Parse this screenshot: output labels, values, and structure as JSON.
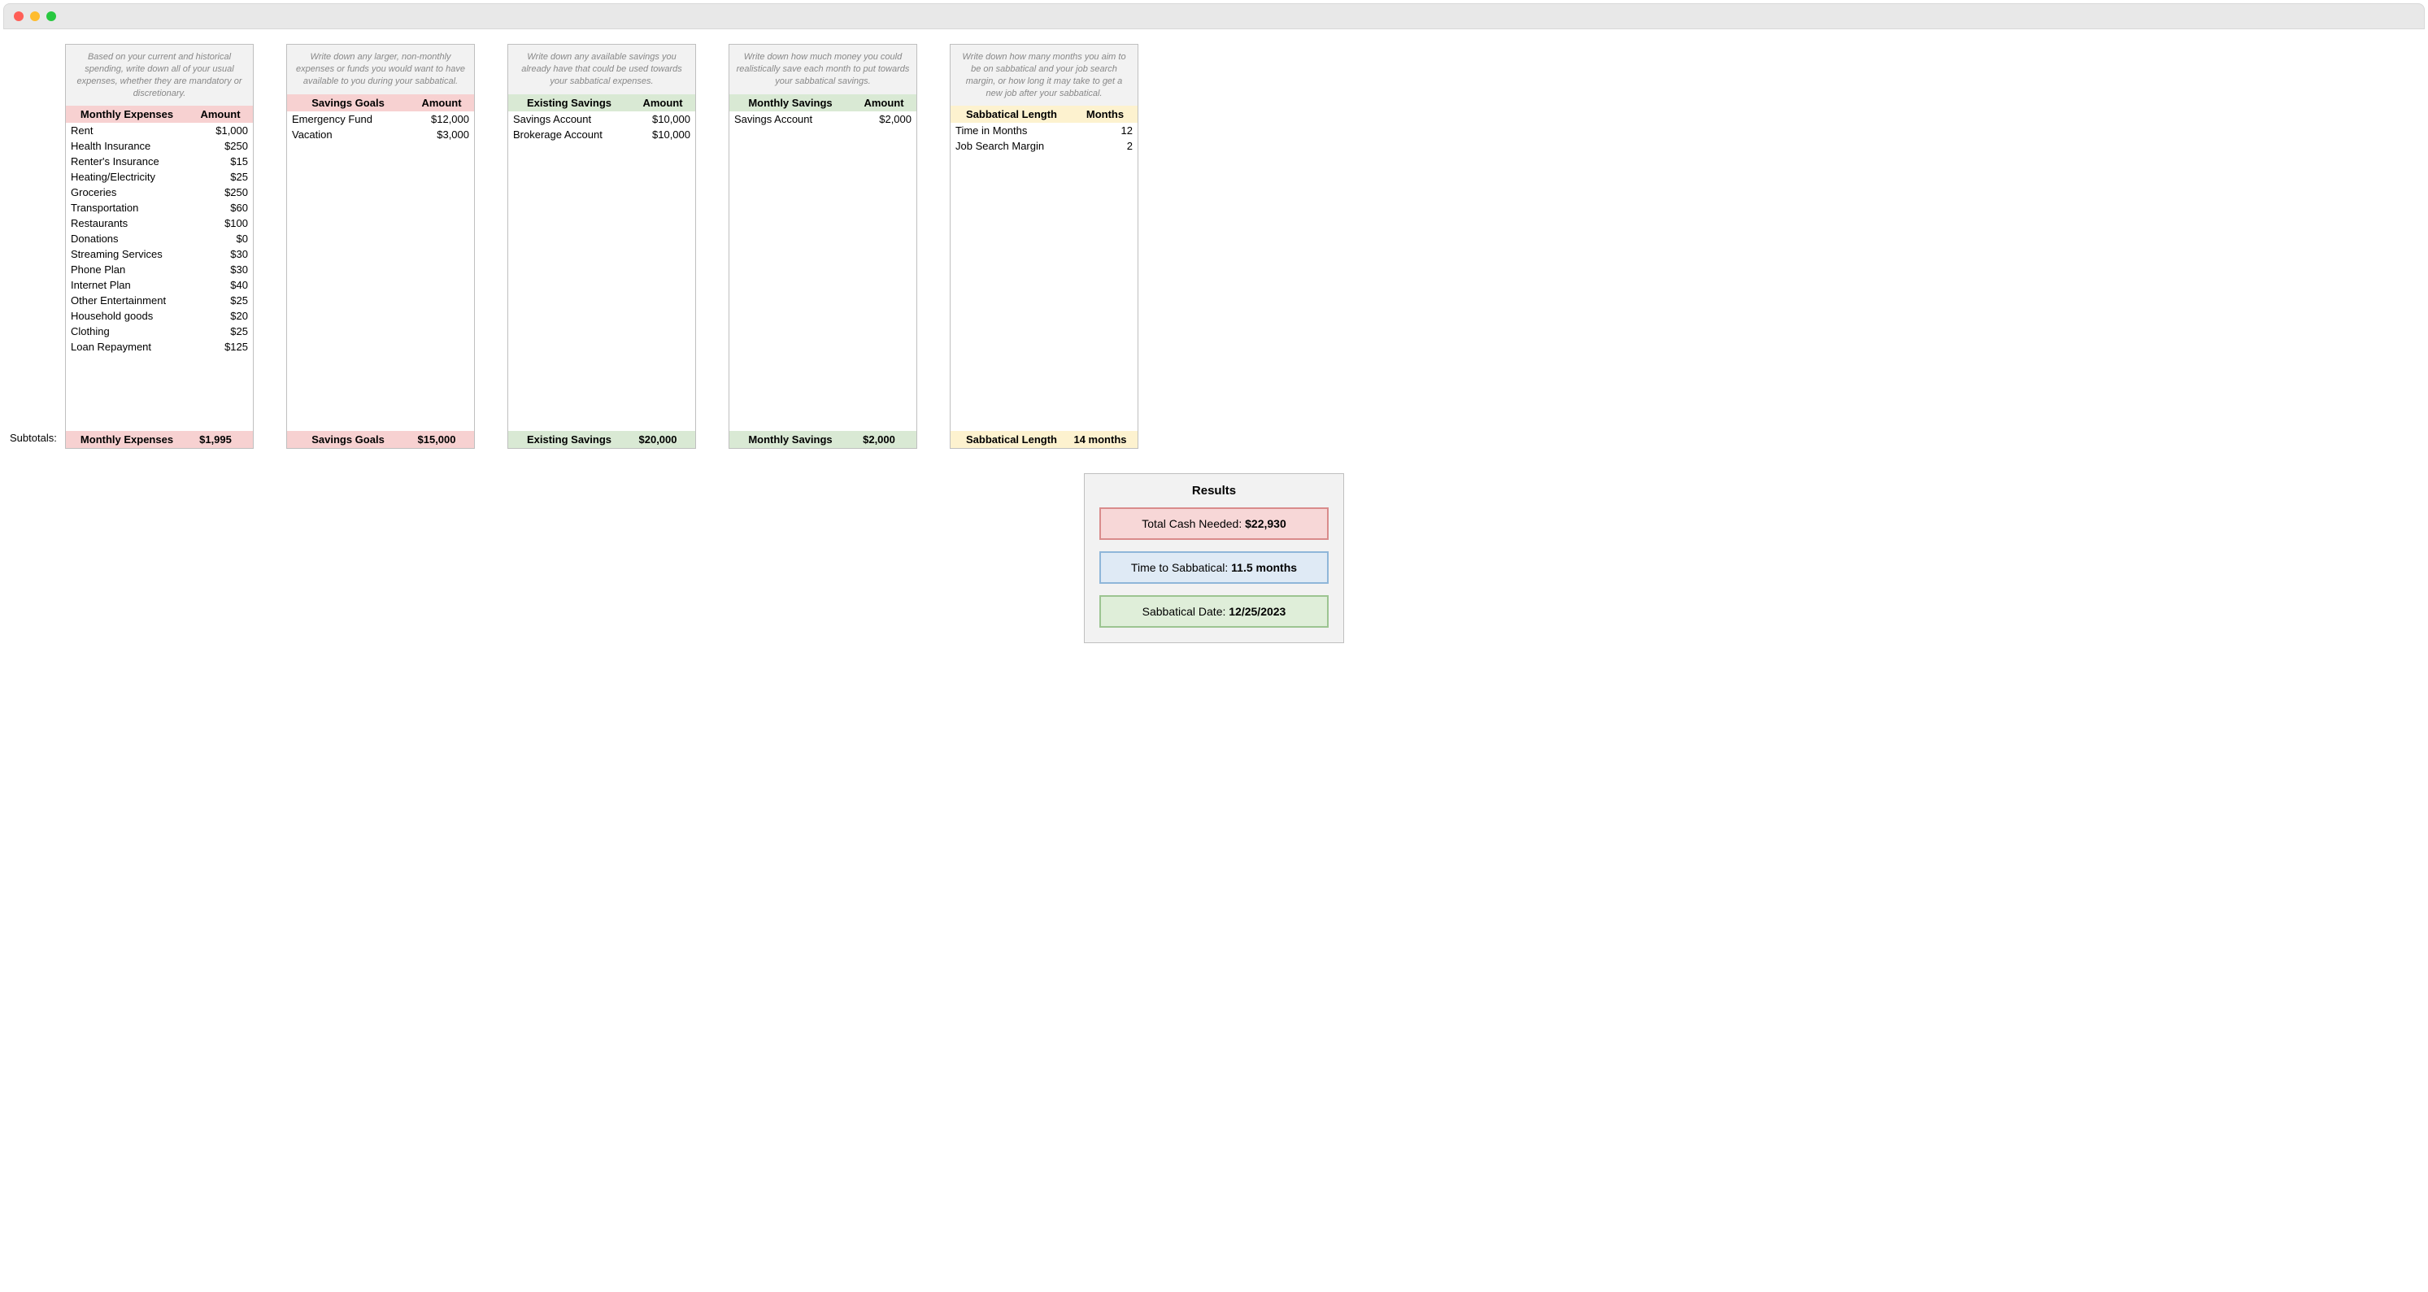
{
  "subtotals_label": "Subtotals:",
  "colors": {
    "card_border": "#bfbfbf",
    "card_bg": "#f2f2f2",
    "red_bg": "#f7d1d1",
    "green_bg": "#d9e9d4",
    "yellow_bg": "#fdf2cf",
    "desc_text": "#888888",
    "result_red_bg": "#f7d7d7",
    "result_red_border": "#d98b8b",
    "result_blue_bg": "#dfeaf5",
    "result_blue_border": "#8fb6d9",
    "result_green_bg": "#dfeed9",
    "result_green_border": "#9cc491"
  },
  "cards": [
    {
      "key": "monthly_expenses",
      "theme": "red",
      "desc": "Based on your current and historical spending, write down all of your usual expenses, whether they are mandatory or discretionary.",
      "header_label": "Monthly Expenses",
      "header_amount": "Amount",
      "rows": [
        {
          "label": "Rent",
          "amount": "$1,000"
        },
        {
          "label": "Health Insurance",
          "amount": "$250"
        },
        {
          "label": "Renter's Insurance",
          "amount": "$15"
        },
        {
          "label": "Heating/Electricity",
          "amount": "$25"
        },
        {
          "label": "Groceries",
          "amount": "$250"
        },
        {
          "label": "Transportation",
          "amount": "$60"
        },
        {
          "label": "Restaurants",
          "amount": "$100"
        },
        {
          "label": "Donations",
          "amount": "$0"
        },
        {
          "label": "Streaming Services",
          "amount": "$30"
        },
        {
          "label": "Phone Plan",
          "amount": "$30"
        },
        {
          "label": "Internet Plan",
          "amount": "$40"
        },
        {
          "label": "Other Entertainment",
          "amount": "$25"
        },
        {
          "label": "Household goods",
          "amount": "$20"
        },
        {
          "label": "Clothing",
          "amount": "$25"
        },
        {
          "label": "Loan Repayment",
          "amount": "$125"
        }
      ],
      "subtotal_label": "Monthly Expenses",
      "subtotal_amount": "$1,995"
    },
    {
      "key": "savings_goals",
      "theme": "red",
      "desc": "Write down any larger, non-monthly expenses or funds you would want to have available to you during your sabbatical.",
      "header_label": "Savings Goals",
      "header_amount": "Amount",
      "rows": [
        {
          "label": "Emergency Fund",
          "amount": "$12,000"
        },
        {
          "label": "Vacation",
          "amount": "$3,000"
        }
      ],
      "subtotal_label": "Savings Goals",
      "subtotal_amount": "$15,000"
    },
    {
      "key": "existing_savings",
      "theme": "green",
      "desc": "Write down any available savings you already have that could be used towards your sabbatical expenses.",
      "header_label": "Existing Savings",
      "header_amount": "Amount",
      "rows": [
        {
          "label": "Savings Account",
          "amount": "$10,000"
        },
        {
          "label": "Brokerage Account",
          "amount": "$10,000"
        }
      ],
      "subtotal_label": "Existing Savings",
      "subtotal_amount": "$20,000"
    },
    {
      "key": "monthly_savings",
      "theme": "green",
      "desc": "Write down how much money you could realistically save each month to put towards your sabbatical savings.",
      "header_label": "Monthly Savings",
      "header_amount": "Amount",
      "rows": [
        {
          "label": "Savings Account",
          "amount": "$2,000"
        }
      ],
      "subtotal_label": "Monthly Savings",
      "subtotal_amount": "$2,000"
    },
    {
      "key": "sabbatical_length",
      "theme": "yellow",
      "desc": "Write down how many months you aim to be on sabbatical and your job search margin, or how long it may take to get a new job after your sabbatical.",
      "header_label": "Sabbatical Length",
      "header_amount": "Months",
      "rows": [
        {
          "label": "Time in Months",
          "amount": "12"
        },
        {
          "label": "Job Search Margin",
          "amount": "2"
        }
      ],
      "subtotal_label": "Sabbatical Length",
      "subtotal_amount": "14 months"
    }
  ],
  "results": {
    "title": "Results",
    "rows": [
      {
        "theme": "red",
        "label": "Total Cash Needed: ",
        "value": "$22,930"
      },
      {
        "theme": "blue",
        "label": "Time to Sabbatical: ",
        "value": "11.5 months"
      },
      {
        "theme": "green",
        "label": "Sabbatical Date: ",
        "value": "12/25/2023"
      }
    ]
  }
}
